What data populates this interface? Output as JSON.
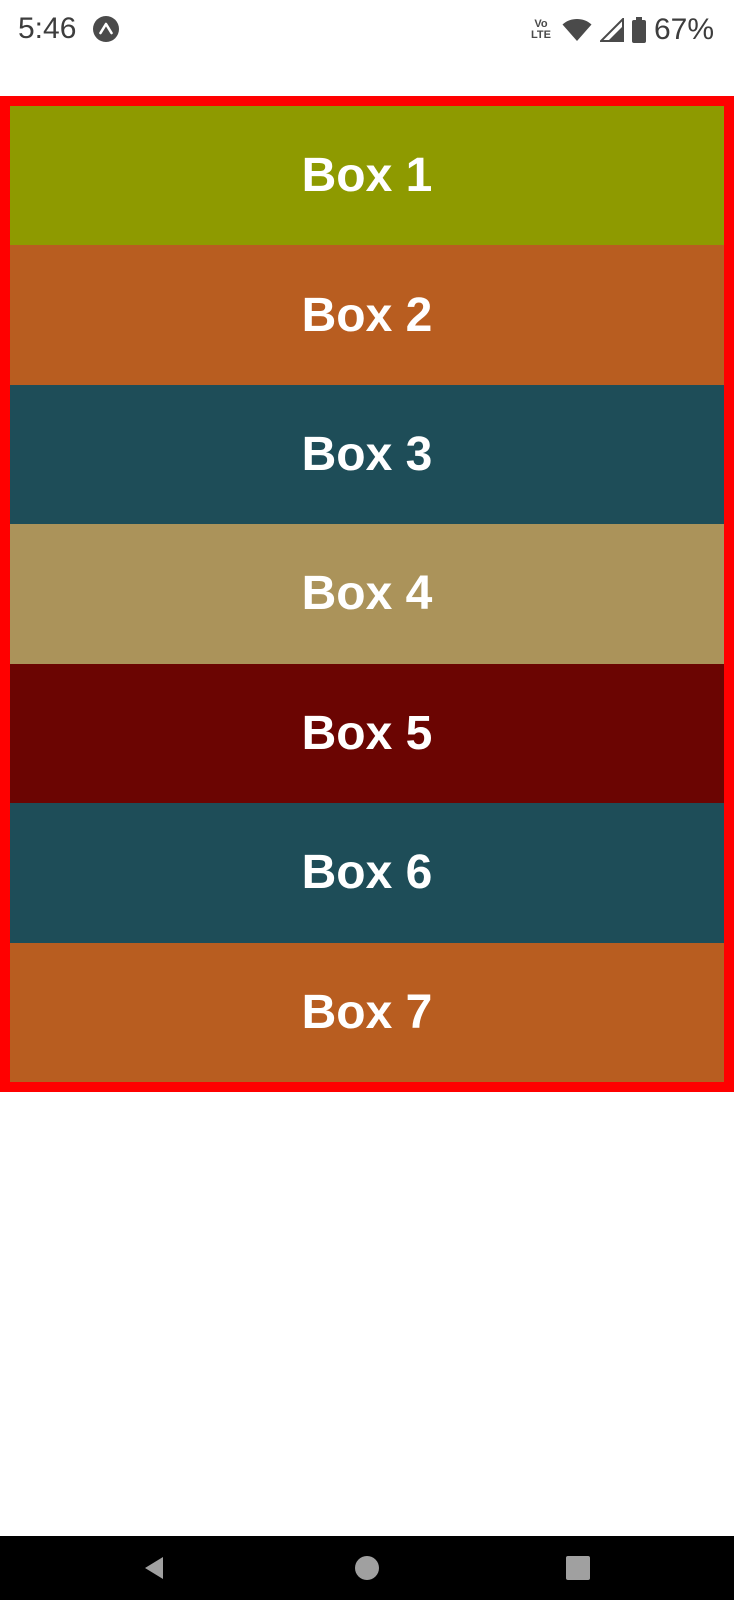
{
  "status_bar": {
    "time": "5:46",
    "app_icon": "expo-icon",
    "volte_top": "Vo",
    "volte_bottom": "LTE",
    "wifi_icon": "wifi-icon",
    "signal_icon": "cellular-signal-icon",
    "battery_icon": "battery-icon",
    "battery_percent": "67%"
  },
  "container": {
    "border_color": "#ff0000"
  },
  "boxes": [
    {
      "label": "Box 1",
      "color": "#8e9a00"
    },
    {
      "label": "Box 2",
      "color": "#b85d20"
    },
    {
      "label": "Box 3",
      "color": "#1e4d58"
    },
    {
      "label": "Box 4",
      "color": "#ab935a"
    },
    {
      "label": "Box 5",
      "color": "#6b0502"
    },
    {
      "label": "Box 6",
      "color": "#1e4d58"
    },
    {
      "label": "Box 7",
      "color": "#b85d20"
    }
  ],
  "nav_bar": {
    "back_icon": "back-triangle-icon",
    "home_icon": "home-circle-icon",
    "recents_icon": "recents-square-icon"
  }
}
